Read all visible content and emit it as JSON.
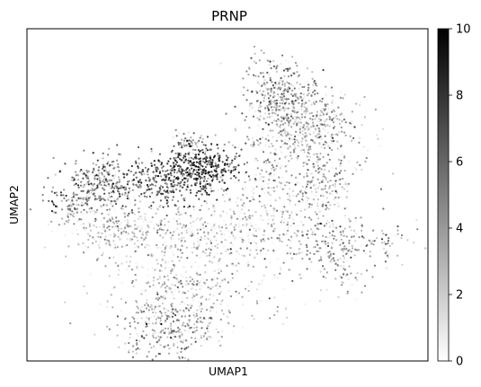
{
  "chart_data": {
    "type": "scatter",
    "title": "PRNP",
    "xlabel": "UMAP1",
    "ylabel": "UMAP2",
    "x_ticks": [],
    "y_ticks": [],
    "colorbar": {
      "cmap": "gray_r",
      "range": [
        0,
        10
      ],
      "ticks": [
        "0",
        "2",
        "4",
        "6",
        "8",
        "10"
      ],
      "colors": [
        "#ffffff",
        "#000000"
      ]
    },
    "clusters": [
      {
        "center": [
          -7.5,
          3.2
        ],
        "spread": [
          1.2,
          0.9
        ],
        "count": 260,
        "mean": 4.5
      },
      {
        "center": [
          -9.2,
          2.0
        ],
        "spread": [
          0.8,
          0.5
        ],
        "count": 80,
        "mean": 4.0
      },
      {
        "center": [
          -3.5,
          3.5
        ],
        "spread": [
          1.4,
          0.9
        ],
        "count": 320,
        "mean": 6.0
      },
      {
        "center": [
          -1.2,
          4.2
        ],
        "spread": [
          1.1,
          0.7
        ],
        "count": 260,
        "mean": 7.0
      },
      {
        "center": [
          -2.3,
          5.8
        ],
        "spread": [
          0.6,
          0.4
        ],
        "count": 60,
        "mean": 3.5
      },
      {
        "center": [
          3.0,
          9.0
        ],
        "spread": [
          1.0,
          1.2
        ],
        "count": 260,
        "mean": 3.5
      },
      {
        "center": [
          4.8,
          7.0
        ],
        "spread": [
          1.6,
          1.2
        ],
        "count": 460,
        "mean": 2.5
      },
      {
        "center": [
          3.5,
          3.5
        ],
        "spread": [
          1.8,
          1.6
        ],
        "count": 320,
        "mean": 1.5
      },
      {
        "center": [
          6.0,
          3.2
        ],
        "spread": [
          0.8,
          1.0
        ],
        "count": 90,
        "mean": 2.5
      },
      {
        "center": [
          6.5,
          -0.5
        ],
        "spread": [
          2.0,
          0.8
        ],
        "count": 220,
        "mean": 3.5
      },
      {
        "center": [
          -1.0,
          0.5
        ],
        "spread": [
          3.8,
          1.2
        ],
        "count": 520,
        "mean": 1.2
      },
      {
        "center": [
          -7.0,
          0.2
        ],
        "spread": [
          1.4,
          0.8
        ],
        "count": 150,
        "mean": 1.8
      },
      {
        "center": [
          -2.0,
          -3.0
        ],
        "spread": [
          2.6,
          1.4
        ],
        "count": 380,
        "mean": 1.8
      },
      {
        "center": [
          -3.5,
          -6.0
        ],
        "spread": [
          1.5,
          1.0
        ],
        "count": 320,
        "mean": 3.0
      },
      {
        "center": [
          6.8,
          -2.5
        ],
        "spread": [
          0.8,
          0.9
        ],
        "count": 50,
        "mean": 2.0
      }
    ],
    "xlim": [
      -12,
      12
    ],
    "ylim": [
      -8,
      13
    ],
    "grid": false,
    "legend": "none"
  }
}
